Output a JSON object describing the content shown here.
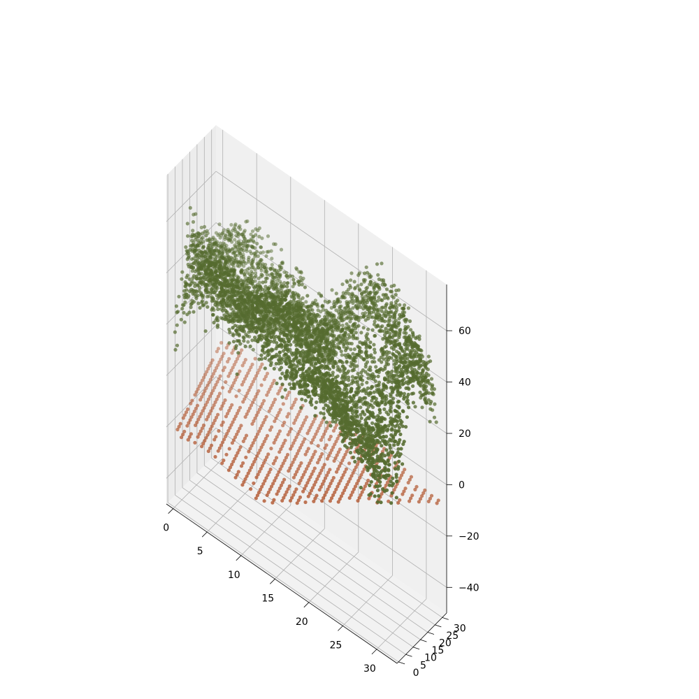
{
  "chart_data": {
    "type": "scatter",
    "projection": "3d",
    "title": "",
    "xlabel": "",
    "ylabel": "",
    "zlabel": "",
    "grid": true,
    "legend": "none",
    "xlim": [
      -1,
      33
    ],
    "ylim": [
      -1,
      33
    ],
    "zlim": [
      -50,
      78
    ],
    "x_ticks": [
      0,
      5,
      10,
      15,
      20,
      25,
      30
    ],
    "y_ticks": [
      0,
      5,
      10,
      15,
      20,
      25,
      30
    ],
    "z_ticks": [
      -40,
      -20,
      0,
      20,
      40,
      60
    ],
    "x_tick_labels": [
      "0",
      "5",
      "10",
      "15",
      "20",
      "25",
      "30"
    ],
    "y_tick_labels": [
      "0",
      "5",
      "10",
      "15",
      "20",
      "25",
      "30"
    ],
    "z_tick_labels": [
      "−40",
      "−20",
      "0",
      "20",
      "40",
      "60"
    ],
    "series": [
      {
        "color": "#556b2f",
        "description": "dense irregular surface of points, roughly z 20–65",
        "x_range": [
          0,
          32
        ],
        "y_range": [
          0,
          32
        ],
        "z_range": [
          -15,
          70
        ]
      },
      {
        "color": "#b0522a",
        "description": "regular grid of points forming a lower plane, roughly z -25 to 10",
        "x_range": [
          0,
          32
        ],
        "y_range": [
          0,
          32
        ],
        "z_range": [
          -25,
          10
        ]
      }
    ]
  }
}
